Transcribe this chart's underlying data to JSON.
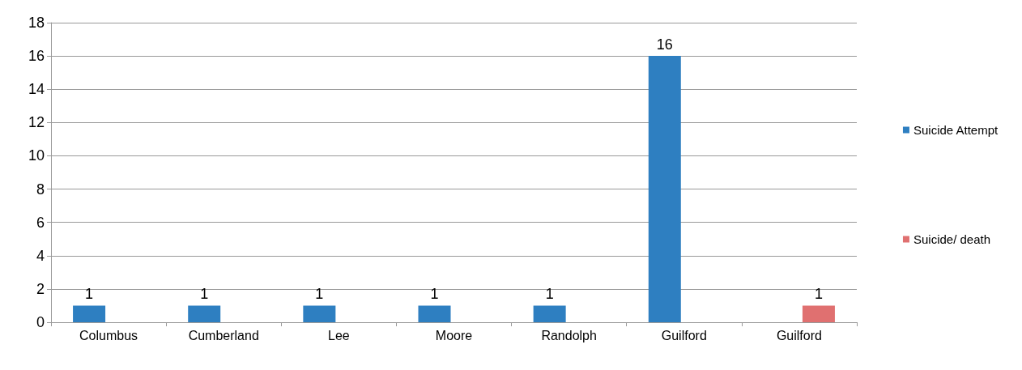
{
  "chart_data": {
    "type": "bar",
    "categories": [
      "Columbus",
      "Cumberland",
      "Lee",
      "Moore",
      "Randolph",
      "Guilford",
      "Guilford"
    ],
    "series": [
      {
        "name": "Suicide Attempt",
        "color": "#2e7fc1",
        "values": [
          1,
          1,
          1,
          1,
          1,
          16,
          null
        ]
      },
      {
        "name": "Suicide/ death",
        "color": "#e07070",
        "values": [
          null,
          null,
          null,
          null,
          null,
          null,
          1
        ]
      }
    ],
    "ylim": [
      0,
      18
    ],
    "yticks": [
      0,
      2,
      4,
      6,
      8,
      10,
      12,
      14,
      16,
      18
    ],
    "grid": "y",
    "legend": "right",
    "data_labels": true
  }
}
